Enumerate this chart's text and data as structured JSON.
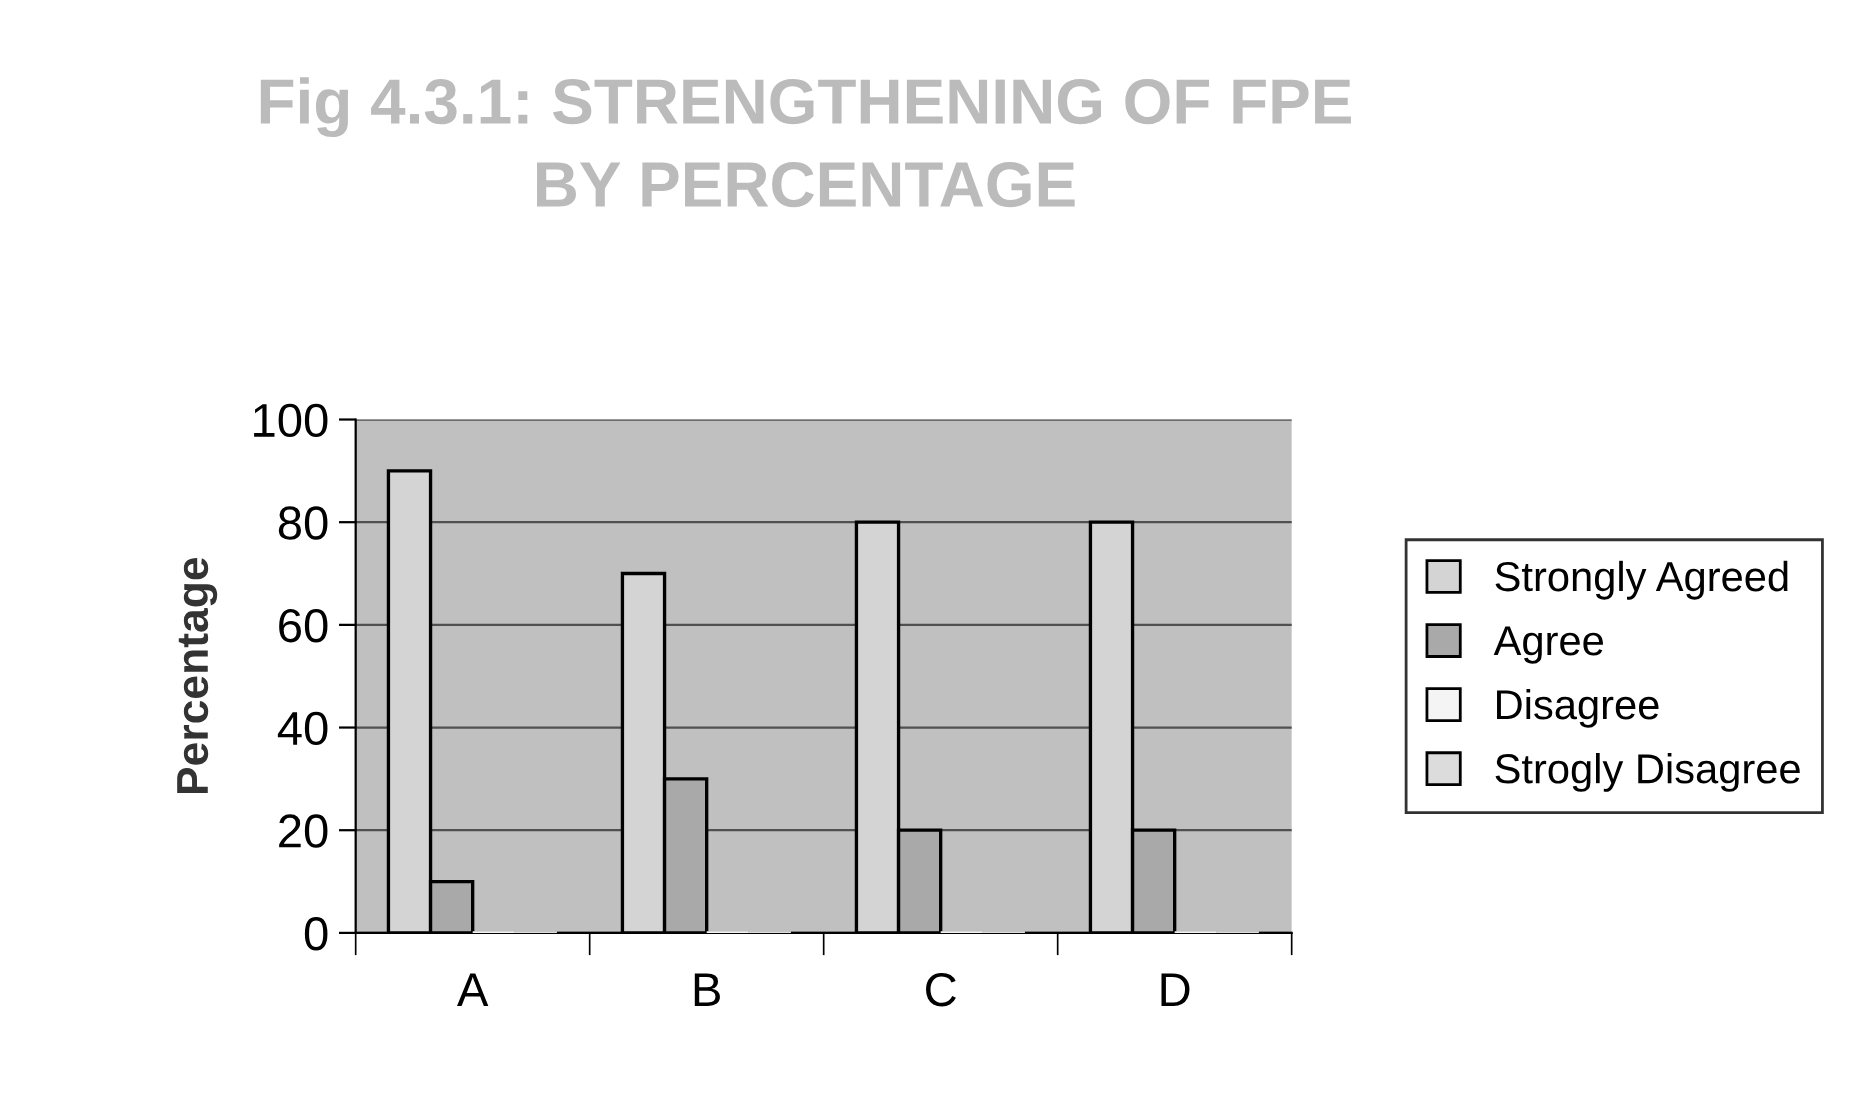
{
  "chart_data": {
    "type": "bar",
    "title": "Fig 4.3.1: STRENGTHENING OF FPE\nBY PERCENTAGE",
    "ylabel": "Percentage",
    "categories": [
      "A",
      "B",
      "C",
      "D"
    ],
    "series": [
      {
        "name": "Strongly Agreed",
        "color": "#d4d4d4",
        "values": [
          90,
          70,
          80,
          80
        ]
      },
      {
        "name": "Agree",
        "color": "#a9a9a9",
        "values": [
          10,
          30,
          20,
          20
        ]
      },
      {
        "name": "Disagree",
        "color": "#f4f4f4",
        "values": [
          0,
          0,
          0,
          0
        ]
      },
      {
        "name": "Strogly Disagree",
        "color": "#dcdcdc",
        "values": [
          0,
          0,
          0,
          0
        ]
      }
    ],
    "ylim": [
      0,
      100
    ],
    "yticks": [
      0,
      20,
      40,
      60,
      80,
      100
    ],
    "grid": "y",
    "legend": "right"
  }
}
